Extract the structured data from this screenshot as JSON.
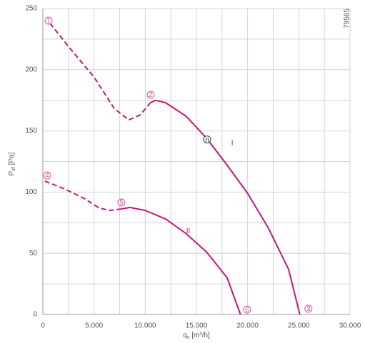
{
  "chart_data": {
    "type": "line",
    "code": "79565",
    "xlabel": {
      "symbol": "q",
      "subscript": "v",
      "unit": "[m³/h]"
    },
    "ylabel": {
      "symbol": "P",
      "subscript": "sf",
      "unit": "[Pa]"
    },
    "xlim": [
      0,
      30000
    ],
    "ylim": [
      0,
      250
    ],
    "xticks": [
      0,
      {
        "value": 5000,
        "label": "5.000"
      },
      {
        "value": 10000,
        "label": "10.000"
      },
      {
        "value": 15000,
        "label": "15.000"
      },
      {
        "value": 20000,
        "label": "20.000"
      },
      {
        "value": 25000,
        "label": "25.000"
      },
      {
        "value": 30000,
        "label": "30.000"
      }
    ],
    "yticks": [
      0,
      50,
      100,
      150,
      200,
      250
    ],
    "xgrid_minor": [
      2500,
      7500,
      12500,
      17500,
      22500,
      27500
    ],
    "ygrid_minor": [
      25,
      75,
      125,
      175,
      225
    ],
    "grid": true,
    "series": [
      {
        "color": "#c2187c",
        "line_style": "dashed",
        "x": [
          700,
          2500,
          5000,
          7000,
          8400,
          9500,
          10500
        ],
        "values": [
          238,
          219,
          194,
          168,
          159,
          163,
          173
        ]
      },
      {
        "color": "#c2187c",
        "line_style": "solid",
        "x": [
          10500,
          11000,
          12000,
          14000,
          16000,
          18000,
          20000,
          22000,
          24000,
          25100
        ],
        "values": [
          173,
          175,
          173,
          162,
          144,
          122,
          99,
          71,
          37,
          0
        ]
      },
      {
        "color": "#c2187c",
        "line_style": "dashed",
        "x": [
          200,
          2000,
          4000,
          5500,
          6500,
          7500
        ],
        "values": [
          109,
          103,
          95,
          87,
          85,
          86
        ]
      },
      {
        "color": "#c2187c",
        "line_style": "solid",
        "x": [
          7500,
          8500,
          10000,
          12000,
          14000,
          16000,
          18000,
          19300
        ],
        "values": [
          86,
          87.5,
          85,
          78,
          66,
          51,
          30,
          0
        ]
      }
    ],
    "points": [
      {
        "label": "1",
        "x": 560,
        "y": 240,
        "color": "#d4569e"
      },
      {
        "label": "2",
        "x": 10530,
        "y": 179.5,
        "color": "#d4569e"
      },
      {
        "label": "3",
        "x": 25940,
        "y": 4.7,
        "color": "#d4569e"
      },
      {
        "label": "4",
        "x": 420,
        "y": 113.6,
        "color": "#d4569e"
      },
      {
        "label": "5",
        "x": 7670,
        "y": 91.5,
        "color": "#d4569e"
      },
      {
        "label": "6",
        "x": 19950,
        "y": 4,
        "color": "#d4569e"
      },
      {
        "label": "n",
        "x": 16040,
        "y": 143,
        "color": "#333333"
      }
    ],
    "annotations": [
      {
        "text": "I",
        "x": 18500,
        "y": 140
      },
      {
        "text": "II",
        "x": 14200,
        "y": 68
      }
    ]
  }
}
